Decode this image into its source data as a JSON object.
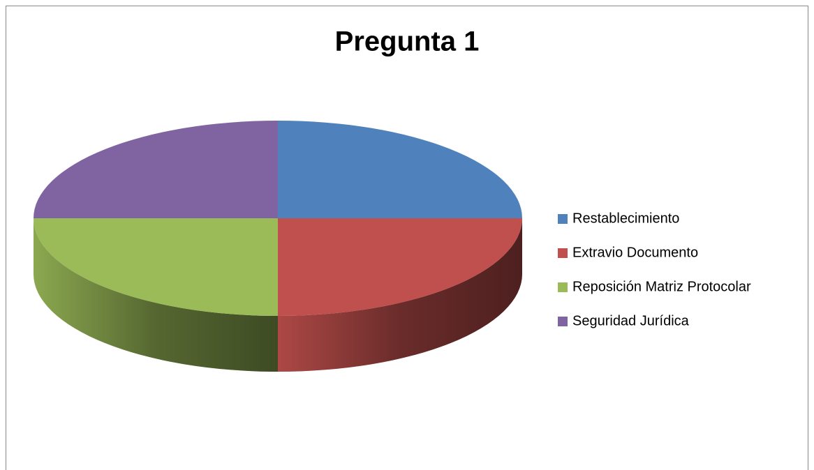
{
  "chart_data": {
    "type": "pie3d",
    "title": "Pregunta 1",
    "categories": [
      "Restablecimiento",
      "Extravio Documento",
      "Reposición Matriz Protocolar",
      "Seguridad Jurídica"
    ],
    "values": [
      25,
      25,
      25,
      25
    ],
    "colors": [
      "#4f81bd",
      "#c0504d",
      "#9bbb59",
      "#8064a2"
    ],
    "legend": "right"
  }
}
